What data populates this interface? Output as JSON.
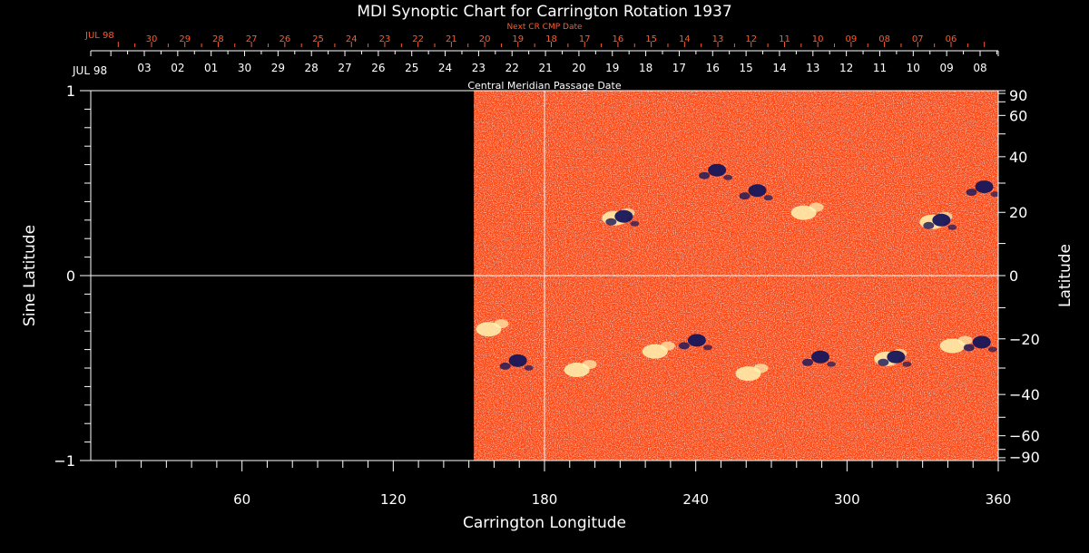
{
  "chart_data": {
    "type": "heatmap",
    "title": "MDI Synoptic Chart for Carrington Rotation 1937",
    "xlabel": "Carrington Longitude",
    "ylabel_left": "Sine Latitude",
    "ylabel_right": "Latitude",
    "xlim": [
      0,
      360
    ],
    "ylim": [
      -1,
      1
    ],
    "x_ticks": [
      60,
      120,
      180,
      240,
      300,
      360
    ],
    "y_ticks_left": [
      {
        "v": 1,
        "label": "1"
      },
      {
        "v": 0,
        "label": "0"
      },
      {
        "v": -1,
        "label": "−1"
      }
    ],
    "lat_ticks_right": [
      90,
      60,
      40,
      20,
      0,
      -20,
      -40,
      -60,
      -90
    ],
    "data_start_longitude": 152,
    "marker_longitude": 180,
    "top_axis_date_prefix": "JUL 98",
    "top_axis_dates": [
      "03",
      "02",
      "01",
      "30",
      "29",
      "28",
      "27",
      "26",
      "25",
      "24",
      "23",
      "22",
      "21",
      "20",
      "19",
      "18",
      "17",
      "16",
      "15",
      "14",
      "13",
      "12",
      "11",
      "10",
      "09",
      "08"
    ],
    "cmp_axis_label": "Central Meridian Passage Date",
    "next_cr_prefix": "JUL 98",
    "next_cr_label": "Next CR CMP Date",
    "next_cr_dates": [
      "30",
      "29",
      "28",
      "27",
      "26",
      "25",
      "24",
      "23",
      "22",
      "21",
      "20",
      "19",
      "18",
      "17",
      "16",
      "15",
      "14",
      "13",
      "12",
      "11",
      "10",
      "09",
      "08",
      "07",
      "06"
    ],
    "colors": {
      "background": "#000000",
      "axes": "#ffffff",
      "next_cr_text": "#ff5a2a",
      "field_base": "#ff4a10",
      "positive_polarity": "#fff4b0",
      "negative_polarity": "#16165a"
    },
    "active_regions": [
      {
        "lon": 210,
        "lat": 0.32,
        "polarity": "mixed"
      },
      {
        "lon": 247,
        "lat": 0.57,
        "polarity": "negative"
      },
      {
        "lon": 263,
        "lat": 0.46,
        "polarity": "negative"
      },
      {
        "lon": 285,
        "lat": 0.35,
        "polarity": "positive"
      },
      {
        "lon": 336,
        "lat": 0.3,
        "polarity": "mixed"
      },
      {
        "lon": 353,
        "lat": 0.48,
        "polarity": "negative"
      },
      {
        "lon": 160,
        "lat": -0.28,
        "polarity": "positive"
      },
      {
        "lon": 168,
        "lat": -0.46,
        "polarity": "negative"
      },
      {
        "lon": 195,
        "lat": -0.5,
        "polarity": "positive"
      },
      {
        "lon": 226,
        "lat": -0.4,
        "polarity": "positive"
      },
      {
        "lon": 239,
        "lat": -0.35,
        "polarity": "negative"
      },
      {
        "lon": 263,
        "lat": -0.52,
        "polarity": "positive"
      },
      {
        "lon": 288,
        "lat": -0.44,
        "polarity": "negative"
      },
      {
        "lon": 318,
        "lat": -0.44,
        "polarity": "mixed"
      },
      {
        "lon": 344,
        "lat": -0.37,
        "polarity": "positive"
      },
      {
        "lon": 352,
        "lat": -0.36,
        "polarity": "negative"
      }
    ]
  }
}
